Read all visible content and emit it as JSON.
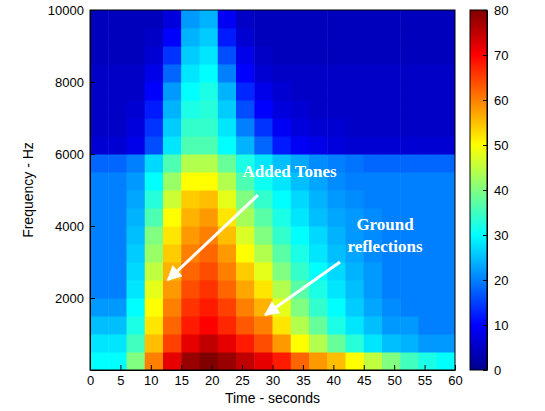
{
  "chart_data": {
    "type": "heatmap",
    "x_label": "Time - seconds",
    "y_label": "Frequency - Hz",
    "xlim": [
      0,
      60
    ],
    "xticks": [
      0,
      5,
      10,
      15,
      20,
      25,
      30,
      35,
      40,
      45,
      50,
      55,
      60
    ],
    "ylim": [
      0,
      10000
    ],
    "yticks": [
      2000,
      4000,
      6000,
      8000,
      10000
    ],
    "grid": false,
    "color": "jet",
    "x_bins": [
      0,
      3,
      6,
      9,
      12,
      15,
      18,
      21,
      24,
      27,
      30,
      33,
      36,
      39,
      42,
      45,
      48,
      51,
      54,
      57,
      60
    ],
    "y_bins": [
      0,
      500,
      1000,
      1500,
      2000,
      2500,
      3000,
      3500,
      4000,
      4500,
      5000,
      5500,
      6000,
      6500,
      7000,
      7500,
      8000,
      8500,
      9000,
      9500,
      10000
    ],
    "values": [
      [
        30,
        30,
        40,
        60,
        72,
        78,
        80,
        78,
        75,
        72,
        68,
        62,
        58,
        55,
        50,
        45,
        40,
        35,
        32,
        30
      ],
      [
        28,
        28,
        35,
        55,
        65,
        72,
        75,
        72,
        68,
        64,
        58,
        50,
        44,
        38,
        33,
        28,
        25,
        24,
        22,
        22
      ],
      [
        25,
        25,
        32,
        52,
        62,
        68,
        70,
        67,
        63,
        60,
        52,
        44,
        38,
        32,
        28,
        25,
        22,
        22,
        20,
        20
      ],
      [
        22,
        22,
        30,
        50,
        60,
        66,
        68,
        65,
        60,
        56,
        48,
        40,
        34,
        30,
        26,
        23,
        21,
        20,
        20,
        20
      ],
      [
        20,
        20,
        28,
        48,
        58,
        64,
        66,
        62,
        57,
        52,
        44,
        37,
        32,
        28,
        25,
        22,
        20,
        20,
        20,
        20
      ],
      [
        20,
        20,
        27,
        45,
        56,
        62,
        64,
        60,
        54,
        48,
        40,
        34,
        30,
        27,
        24,
        22,
        20,
        20,
        20,
        20
      ],
      [
        20,
        20,
        26,
        42,
        54,
        60,
        62,
        58,
        50,
        44,
        37,
        32,
        28,
        25,
        23,
        21,
        20,
        20,
        20,
        20
      ],
      [
        20,
        20,
        25,
        40,
        52,
        58,
        60,
        55,
        47,
        40,
        34,
        30,
        27,
        24,
        22,
        21,
        20,
        20,
        20,
        20
      ],
      [
        20,
        20,
        24,
        36,
        50,
        56,
        58,
        52,
        43,
        37,
        32,
        28,
        25,
        23,
        22,
        21,
        20,
        20,
        20,
        20
      ],
      [
        20,
        20,
        23,
        33,
        46,
        54,
        55,
        48,
        40,
        34,
        30,
        27,
        24,
        22,
        21,
        20,
        20,
        20,
        20,
        20
      ],
      [
        20,
        20,
        22,
        30,
        42,
        50,
        50,
        44,
        36,
        31,
        28,
        25,
        23,
        21,
        20,
        20,
        20,
        20,
        20,
        20
      ],
      [
        18,
        18,
        20,
        27,
        36,
        44,
        44,
        38,
        32,
        28,
        25,
        23,
        21,
        20,
        19,
        18,
        18,
        18,
        18,
        18
      ],
      [
        6,
        6,
        8,
        16,
        28,
        36,
        36,
        30,
        24,
        18,
        12,
        9,
        8,
        7,
        6,
        6,
        6,
        6,
        6,
        6
      ],
      [
        5,
        5,
        7,
        14,
        26,
        34,
        34,
        28,
        20,
        14,
        9,
        7,
        6,
        6,
        5,
        5,
        5,
        5,
        5,
        5
      ],
      [
        5,
        5,
        6,
        12,
        24,
        32,
        33,
        26,
        16,
        10,
        7,
        6,
        5,
        5,
        5,
        5,
        5,
        5,
        5,
        5
      ],
      [
        5,
        5,
        5,
        10,
        22,
        30,
        32,
        24,
        13,
        8,
        6,
        5,
        5,
        5,
        5,
        5,
        5,
        5,
        5,
        5
      ],
      [
        5,
        5,
        5,
        8,
        18,
        28,
        30,
        20,
        10,
        6,
        5,
        5,
        5,
        5,
        5,
        5,
        5,
        5,
        5,
        5
      ],
      [
        4,
        4,
        4,
        6,
        14,
        26,
        28,
        16,
        8,
        5,
        4,
        4,
        4,
        4,
        4,
        4,
        4,
        4,
        4,
        4
      ],
      [
        4,
        4,
        4,
        5,
        10,
        24,
        26,
        12,
        6,
        4,
        4,
        4,
        4,
        4,
        4,
        4,
        4,
        4,
        4,
        4
      ],
      [
        4,
        4,
        4,
        4,
        7,
        22,
        24,
        9,
        5,
        4,
        4,
        4,
        4,
        4,
        4,
        4,
        4,
        4,
        4,
        4
      ]
    ],
    "colorbar": {
      "range": [
        0,
        80
      ],
      "ticks": [
        0,
        10,
        20,
        30,
        40,
        50,
        60,
        70,
        80
      ]
    },
    "annotations": [
      {
        "text": "Added Tones",
        "x": 12.8,
        "y": 2500,
        "tail_x": 27.6,
        "tail_y": 4860,
        "text_x": 32.8,
        "text_y": 5350
      },
      {
        "text": "Ground reflections",
        "x": 28.8,
        "y": 1530,
        "tail_x": 41.1,
        "tail_y": 3000,
        "text_x": 48.5,
        "text_y": 3900
      }
    ]
  }
}
